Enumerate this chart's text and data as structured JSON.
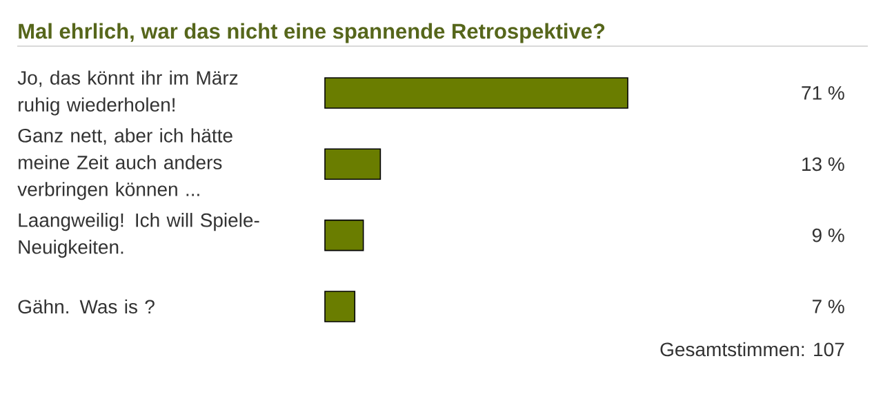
{
  "chart_data": {
    "type": "bar",
    "orientation": "horizontal",
    "title": "Mal ehrlich, war das nicht eine spannende Retrospektive?",
    "categories": [
      "Jo, das könnt ihr im März ruhig wiederholen!",
      "Ganz nett, aber ich hätte meine Zeit auch anders verbringen können ...",
      "Laangweilig! Ich will Spiele-Neuigkeiten.",
      "Gähn. Was is ?"
    ],
    "values": [
      71,
      13,
      9,
      7
    ],
    "value_labels": [
      "71 %",
      "13 %",
      "9 %",
      "7 %"
    ],
    "color": "#6a7d00",
    "tick_labels": "y",
    "annotations": [
      "Gesamtstimmen: 107"
    ]
  }
}
